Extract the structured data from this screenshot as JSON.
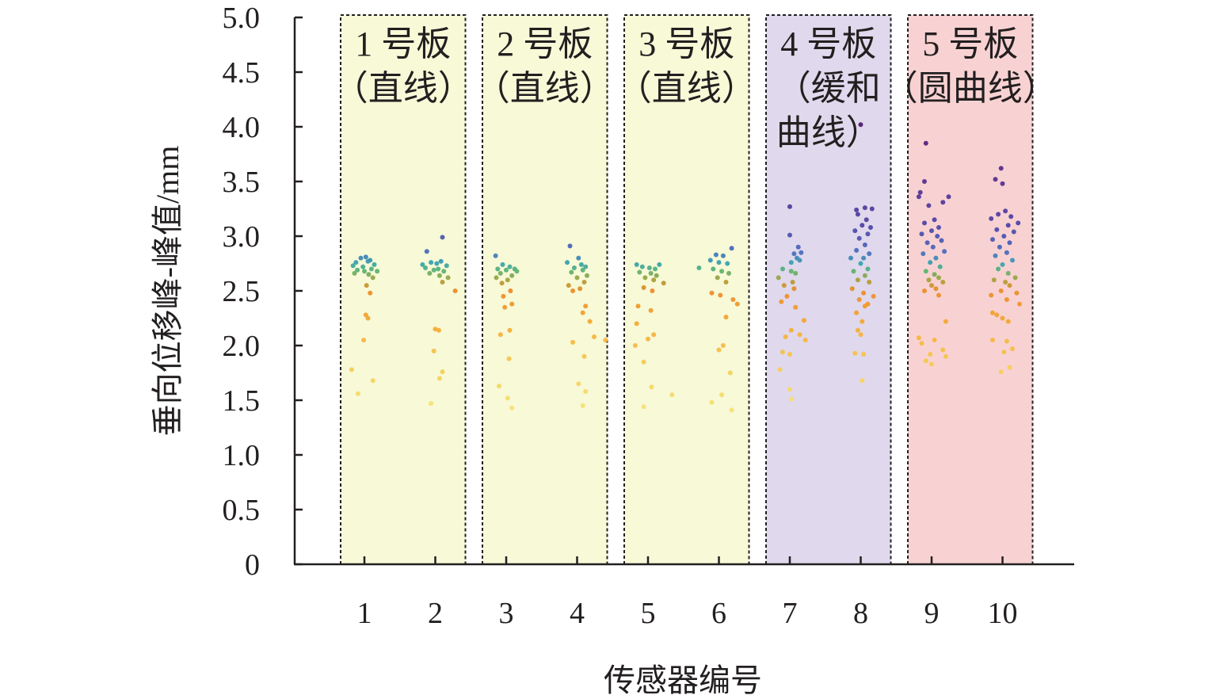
{
  "chart_data": {
    "type": "scatter",
    "xlabel": "传感器编号",
    "ylabel": "垂向位移峰-峰值/mm",
    "ylim": [
      0,
      5.0
    ],
    "y_ticks": [
      "0",
      "0.5",
      "1.0",
      "1.5",
      "2.0",
      "2.5",
      "3.0",
      "3.5",
      "4.0",
      "4.5",
      "5.0"
    ],
    "categories": [
      "1",
      "2",
      "3",
      "4",
      "5",
      "6",
      "7",
      "8",
      "9",
      "10"
    ],
    "panels": [
      {
        "line1": "1 号板",
        "line2": "（直线）",
        "line3": "",
        "from": 1,
        "to": 2,
        "color": "#f7f9d7"
      },
      {
        "line1": "2 号板",
        "line2": "（直线）",
        "line3": "",
        "from": 3,
        "to": 4,
        "color": "#f7f9d7"
      },
      {
        "line1": "3 号板",
        "line2": "（直线）",
        "line3": "",
        "from": 5,
        "to": 6,
        "color": "#f7f9d7"
      },
      {
        "line1": "4 号板",
        "line2": "（缓和",
        "line3": "曲线）",
        "from": 7,
        "to": 8,
        "color": "#e0d8ec"
      },
      {
        "line1": "5 号板",
        "line2": "（圆曲线）",
        "line3": "",
        "from": 9,
        "to": 10,
        "color": "#f8d2d3"
      }
    ],
    "series": [
      {
        "sensor": 1,
        "points": [
          [
            -0.12,
            2.76
          ],
          [
            -0.05,
            2.8
          ],
          [
            0.02,
            2.81
          ],
          [
            0.08,
            2.78
          ],
          [
            0.14,
            2.74
          ],
          [
            -0.16,
            2.73
          ],
          [
            0.05,
            2.77
          ],
          [
            -0.02,
            2.72
          ],
          [
            0.1,
            2.7
          ],
          [
            -0.1,
            2.69
          ],
          [
            0.0,
            2.68
          ],
          [
            0.18,
            2.68
          ],
          [
            -0.14,
            2.66
          ],
          [
            0.06,
            2.65
          ],
          [
            0.12,
            2.62
          ],
          [
            0.03,
            2.55
          ],
          [
            0.08,
            2.48
          ],
          [
            0.02,
            2.28
          ],
          [
            0.05,
            2.25
          ],
          [
            -0.01,
            2.05
          ],
          [
            -0.18,
            1.78
          ],
          [
            -0.09,
            1.56
          ],
          [
            0.12,
            1.68
          ]
        ]
      },
      {
        "sensor": 2,
        "points": [
          [
            0.1,
            2.99
          ],
          [
            -0.12,
            2.86
          ],
          [
            -0.18,
            2.74
          ],
          [
            -0.06,
            2.76
          ],
          [
            0.02,
            2.75
          ],
          [
            0.08,
            2.77
          ],
          [
            0.16,
            2.73
          ],
          [
            -0.14,
            2.71
          ],
          [
            0.04,
            2.7
          ],
          [
            -0.02,
            2.69
          ],
          [
            0.12,
            2.68
          ],
          [
            -0.08,
            2.66
          ],
          [
            0.06,
            2.64
          ],
          [
            0.18,
            2.62
          ],
          [
            0.1,
            2.58
          ],
          [
            0.28,
            2.5
          ],
          [
            0.0,
            2.15
          ],
          [
            0.05,
            2.14
          ],
          [
            -0.02,
            1.95
          ],
          [
            0.1,
            1.76
          ],
          [
            0.06,
            1.7
          ],
          [
            -0.06,
            1.47
          ]
        ]
      },
      {
        "sensor": 3,
        "points": [
          [
            -0.15,
            2.82
          ],
          [
            -0.05,
            2.74
          ],
          [
            0.05,
            2.72
          ],
          [
            0.12,
            2.7
          ],
          [
            -0.12,
            2.7
          ],
          [
            0.0,
            2.69
          ],
          [
            0.15,
            2.68
          ],
          [
            -0.08,
            2.66
          ],
          [
            0.08,
            2.64
          ],
          [
            -0.14,
            2.62
          ],
          [
            0.02,
            2.6
          ],
          [
            -0.06,
            2.57
          ],
          [
            0.06,
            2.5
          ],
          [
            -0.04,
            2.45
          ],
          [
            0.08,
            2.38
          ],
          [
            -0.02,
            2.35
          ],
          [
            0.05,
            2.14
          ],
          [
            -0.08,
            2.1
          ],
          [
            0.04,
            1.88
          ],
          [
            -0.1,
            1.63
          ],
          [
            0.02,
            1.52
          ],
          [
            0.08,
            1.43
          ]
        ]
      },
      {
        "sensor": 4,
        "points": [
          [
            -0.1,
            2.91
          ],
          [
            0.02,
            2.8
          ],
          [
            -0.14,
            2.76
          ],
          [
            0.06,
            2.74
          ],
          [
            0.12,
            2.72
          ],
          [
            -0.04,
            2.71
          ],
          [
            0.08,
            2.69
          ],
          [
            -0.08,
            2.67
          ],
          [
            0.14,
            2.64
          ],
          [
            0.0,
            2.62
          ],
          [
            0.1,
            2.58
          ],
          [
            -0.12,
            2.55
          ],
          [
            0.04,
            2.52
          ],
          [
            -0.06,
            2.5
          ],
          [
            0.12,
            2.36
          ],
          [
            0.08,
            2.3
          ],
          [
            0.18,
            2.22
          ],
          [
            0.4,
            2.05
          ],
          [
            0.24,
            2.08
          ],
          [
            -0.06,
            2.03
          ],
          [
            0.1,
            1.9
          ],
          [
            0.02,
            1.65
          ],
          [
            0.12,
            1.58
          ],
          [
            0.08,
            1.45
          ]
        ]
      },
      {
        "sensor": 5,
        "points": [
          [
            -0.16,
            2.74
          ],
          [
            -0.08,
            2.72
          ],
          [
            0.02,
            2.71
          ],
          [
            0.1,
            2.7
          ],
          [
            0.16,
            2.74
          ],
          [
            -0.12,
            2.67
          ],
          [
            0.04,
            2.66
          ],
          [
            0.12,
            2.64
          ],
          [
            -0.04,
            2.62
          ],
          [
            0.08,
            2.6
          ],
          [
            0.22,
            2.57
          ],
          [
            -0.06,
            2.53
          ],
          [
            0.06,
            2.5
          ],
          [
            -0.14,
            2.36
          ],
          [
            0.04,
            2.32
          ],
          [
            -0.16,
            2.2
          ],
          [
            0.08,
            2.1
          ],
          [
            0.0,
            2.06
          ],
          [
            -0.18,
            2.0
          ],
          [
            -0.06,
            1.85
          ],
          [
            0.05,
            1.62
          ],
          [
            0.34,
            1.55
          ],
          [
            -0.06,
            1.44
          ]
        ]
      },
      {
        "sensor": 6,
        "points": [
          [
            -0.04,
            2.83
          ],
          [
            0.06,
            2.82
          ],
          [
            0.18,
            2.89
          ],
          [
            -0.12,
            2.78
          ],
          [
            0.0,
            2.76
          ],
          [
            0.12,
            2.75
          ],
          [
            -0.28,
            2.71
          ],
          [
            -0.08,
            2.7
          ],
          [
            0.04,
            2.68
          ],
          [
            0.14,
            2.66
          ],
          [
            -0.02,
            2.62
          ],
          [
            0.1,
            2.58
          ],
          [
            -0.1,
            2.48
          ],
          [
            0.02,
            2.46
          ],
          [
            0.2,
            2.42
          ],
          [
            0.26,
            2.38
          ],
          [
            0.1,
            2.26
          ],
          [
            0.06,
            2.0
          ],
          [
            0.0,
            1.96
          ],
          [
            0.16,
            1.75
          ],
          [
            0.04,
            1.55
          ],
          [
            -0.1,
            1.48
          ],
          [
            0.18,
            1.41
          ]
        ]
      },
      {
        "sensor": 7,
        "points": [
          [
            0.0,
            3.27
          ],
          [
            0.0,
            3.01
          ],
          [
            0.12,
            2.9
          ],
          [
            0.16,
            2.85
          ],
          [
            0.06,
            2.84
          ],
          [
            0.1,
            2.8
          ],
          [
            0.02,
            2.76
          ],
          [
            0.14,
            2.78
          ],
          [
            -0.1,
            2.7
          ],
          [
            0.02,
            2.68
          ],
          [
            0.08,
            2.66
          ],
          [
            -0.16,
            2.62
          ],
          [
            0.04,
            2.58
          ],
          [
            -0.08,
            2.55
          ],
          [
            0.06,
            2.52
          ],
          [
            -0.04,
            2.45
          ],
          [
            -0.12,
            2.4
          ],
          [
            0.08,
            2.35
          ],
          [
            0.2,
            2.23
          ],
          [
            0.02,
            2.14
          ],
          [
            0.14,
            2.1
          ],
          [
            -0.06,
            2.08
          ],
          [
            0.22,
            2.05
          ],
          [
            -0.1,
            1.94
          ],
          [
            0.0,
            1.92
          ],
          [
            -0.14,
            1.78
          ],
          [
            0.0,
            1.6
          ],
          [
            0.02,
            1.51
          ]
        ]
      },
      {
        "sensor": 8,
        "points": [
          [
            0.0,
            4.02
          ],
          [
            -0.06,
            3.24
          ],
          [
            0.06,
            3.26
          ],
          [
            0.16,
            3.25
          ],
          [
            -0.04,
            3.2
          ],
          [
            0.08,
            3.15
          ],
          [
            0.02,
            3.1
          ],
          [
            0.14,
            3.08
          ],
          [
            -0.08,
            3.05
          ],
          [
            0.1,
            3.02
          ],
          [
            -0.02,
            2.98
          ],
          [
            0.06,
            2.92
          ],
          [
            -0.06,
            2.87
          ],
          [
            0.12,
            2.84
          ],
          [
            -0.14,
            2.8
          ],
          [
            0.04,
            2.8
          ],
          [
            0.0,
            2.75
          ],
          [
            0.1,
            2.7
          ],
          [
            -0.1,
            2.68
          ],
          [
            0.06,
            2.64
          ],
          [
            -0.04,
            2.6
          ],
          [
            0.12,
            2.58
          ],
          [
            -0.12,
            2.52
          ],
          [
            0.04,
            2.48
          ],
          [
            0.18,
            2.45
          ],
          [
            -0.02,
            2.42
          ],
          [
            0.1,
            2.38
          ],
          [
            0.06,
            2.36
          ],
          [
            -0.06,
            2.3
          ],
          [
            0.02,
            2.22
          ],
          [
            -0.04,
            2.14
          ],
          [
            0.0,
            2.1
          ],
          [
            -0.08,
            1.93
          ],
          [
            0.04,
            1.92
          ],
          [
            0.02,
            1.68
          ]
        ]
      },
      {
        "sensor": 9,
        "points": [
          [
            -0.08,
            3.85
          ],
          [
            -0.1,
            3.5
          ],
          [
            -0.16,
            3.4
          ],
          [
            0.24,
            3.36
          ],
          [
            -0.18,
            3.36
          ],
          [
            0.16,
            3.31
          ],
          [
            -0.04,
            3.28
          ],
          [
            0.04,
            3.15
          ],
          [
            -0.1,
            3.12
          ],
          [
            0.1,
            3.08
          ],
          [
            0.0,
            3.05
          ],
          [
            -0.14,
            3.02
          ],
          [
            0.08,
            3.0
          ],
          [
            0.14,
            2.96
          ],
          [
            -0.06,
            2.94
          ],
          [
            0.02,
            2.9
          ],
          [
            0.18,
            2.86
          ],
          [
            -0.12,
            2.84
          ],
          [
            0.06,
            2.8
          ],
          [
            -0.02,
            2.76
          ],
          [
            0.12,
            2.72
          ],
          [
            -0.08,
            2.68
          ],
          [
            0.04,
            2.65
          ],
          [
            0.1,
            2.62
          ],
          [
            -0.04,
            2.6
          ],
          [
            0.16,
            2.58
          ],
          [
            0.0,
            2.55
          ],
          [
            0.06,
            2.52
          ],
          [
            -0.1,
            2.5
          ],
          [
            0.1,
            2.46
          ],
          [
            0.2,
            2.22
          ],
          [
            -0.18,
            2.07
          ],
          [
            0.04,
            2.05
          ],
          [
            -0.14,
            2.02
          ],
          [
            0.16,
            1.96
          ],
          [
            -0.02,
            1.92
          ],
          [
            0.2,
            1.9
          ],
          [
            -0.08,
            1.86
          ],
          [
            0.0,
            1.83
          ]
        ]
      },
      {
        "sensor": 10,
        "points": [
          [
            -0.02,
            3.62
          ],
          [
            -0.1,
            3.52
          ],
          [
            0.0,
            3.48
          ],
          [
            0.04,
            3.23
          ],
          [
            -0.06,
            3.2
          ],
          [
            0.12,
            3.18
          ],
          [
            -0.16,
            3.16
          ],
          [
            0.22,
            3.12
          ],
          [
            0.08,
            3.1
          ],
          [
            -0.08,
            3.06
          ],
          [
            0.16,
            3.04
          ],
          [
            0.02,
            3.0
          ],
          [
            -0.14,
            2.97
          ],
          [
            0.1,
            2.94
          ],
          [
            -0.04,
            2.9
          ],
          [
            0.06,
            2.85
          ],
          [
            -0.1,
            2.82
          ],
          [
            0.14,
            2.78
          ],
          [
            0.0,
            2.74
          ],
          [
            -0.06,
            2.7
          ],
          [
            0.08,
            2.66
          ],
          [
            0.18,
            2.62
          ],
          [
            -0.12,
            2.6
          ],
          [
            0.04,
            2.58
          ],
          [
            0.1,
            2.55
          ],
          [
            -0.02,
            2.5
          ],
          [
            0.2,
            2.48
          ],
          [
            -0.16,
            2.46
          ],
          [
            0.06,
            2.42
          ],
          [
            0.24,
            2.38
          ],
          [
            -0.14,
            2.3
          ],
          [
            -0.08,
            2.28
          ],
          [
            0.0,
            2.25
          ],
          [
            0.08,
            2.22
          ],
          [
            -0.14,
            2.05
          ],
          [
            0.06,
            2.04
          ],
          [
            0.14,
            1.97
          ],
          [
            0.02,
            1.94
          ],
          [
            0.1,
            1.8
          ],
          [
            -0.02,
            1.76
          ]
        ]
      }
    ]
  }
}
